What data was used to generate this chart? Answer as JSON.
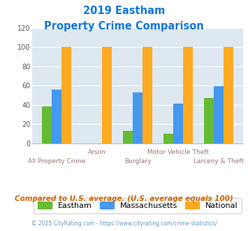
{
  "title_line1": "2019 Eastham",
  "title_line2": "Property Crime Comparison",
  "categories": [
    "All Property Crime",
    "Arson",
    "Burglary",
    "Motor Vehicle Theft",
    "Larceny & Theft"
  ],
  "eastham": [
    38,
    0,
    13,
    10,
    47
  ],
  "massachusetts": [
    56,
    0,
    53,
    41,
    59
  ],
  "national": [
    100,
    100,
    100,
    100,
    100
  ],
  "bar_colors": {
    "eastham": "#66bb33",
    "massachusetts": "#4499ee",
    "national": "#ffaa22"
  },
  "ylim": [
    0,
    120
  ],
  "yticks": [
    0,
    20,
    40,
    60,
    80,
    100,
    120
  ],
  "plot_bg": "#dde8f0",
  "title_color": "#1177dd",
  "xlabel_color": "#997777",
  "footer_text": "Compared to U.S. average. (U.S. average equals 100)",
  "footer_color": "#cc6600",
  "credit_text": "© 2025 CityRating.com - https://www.cityrating.com/crime-statistics/",
  "credit_color": "#6699bb",
  "legend_labels": [
    "Eastham",
    "Massachusetts",
    "National"
  ],
  "label_rows": [
    [
      1,
      "Arson"
    ],
    [
      3,
      "Motor Vehicle Theft"
    ]
  ],
  "label_bottom": [
    [
      0,
      "All Property Crime"
    ],
    [
      2,
      "Burglary"
    ],
    [
      4,
      "Larceny & Theft"
    ]
  ]
}
